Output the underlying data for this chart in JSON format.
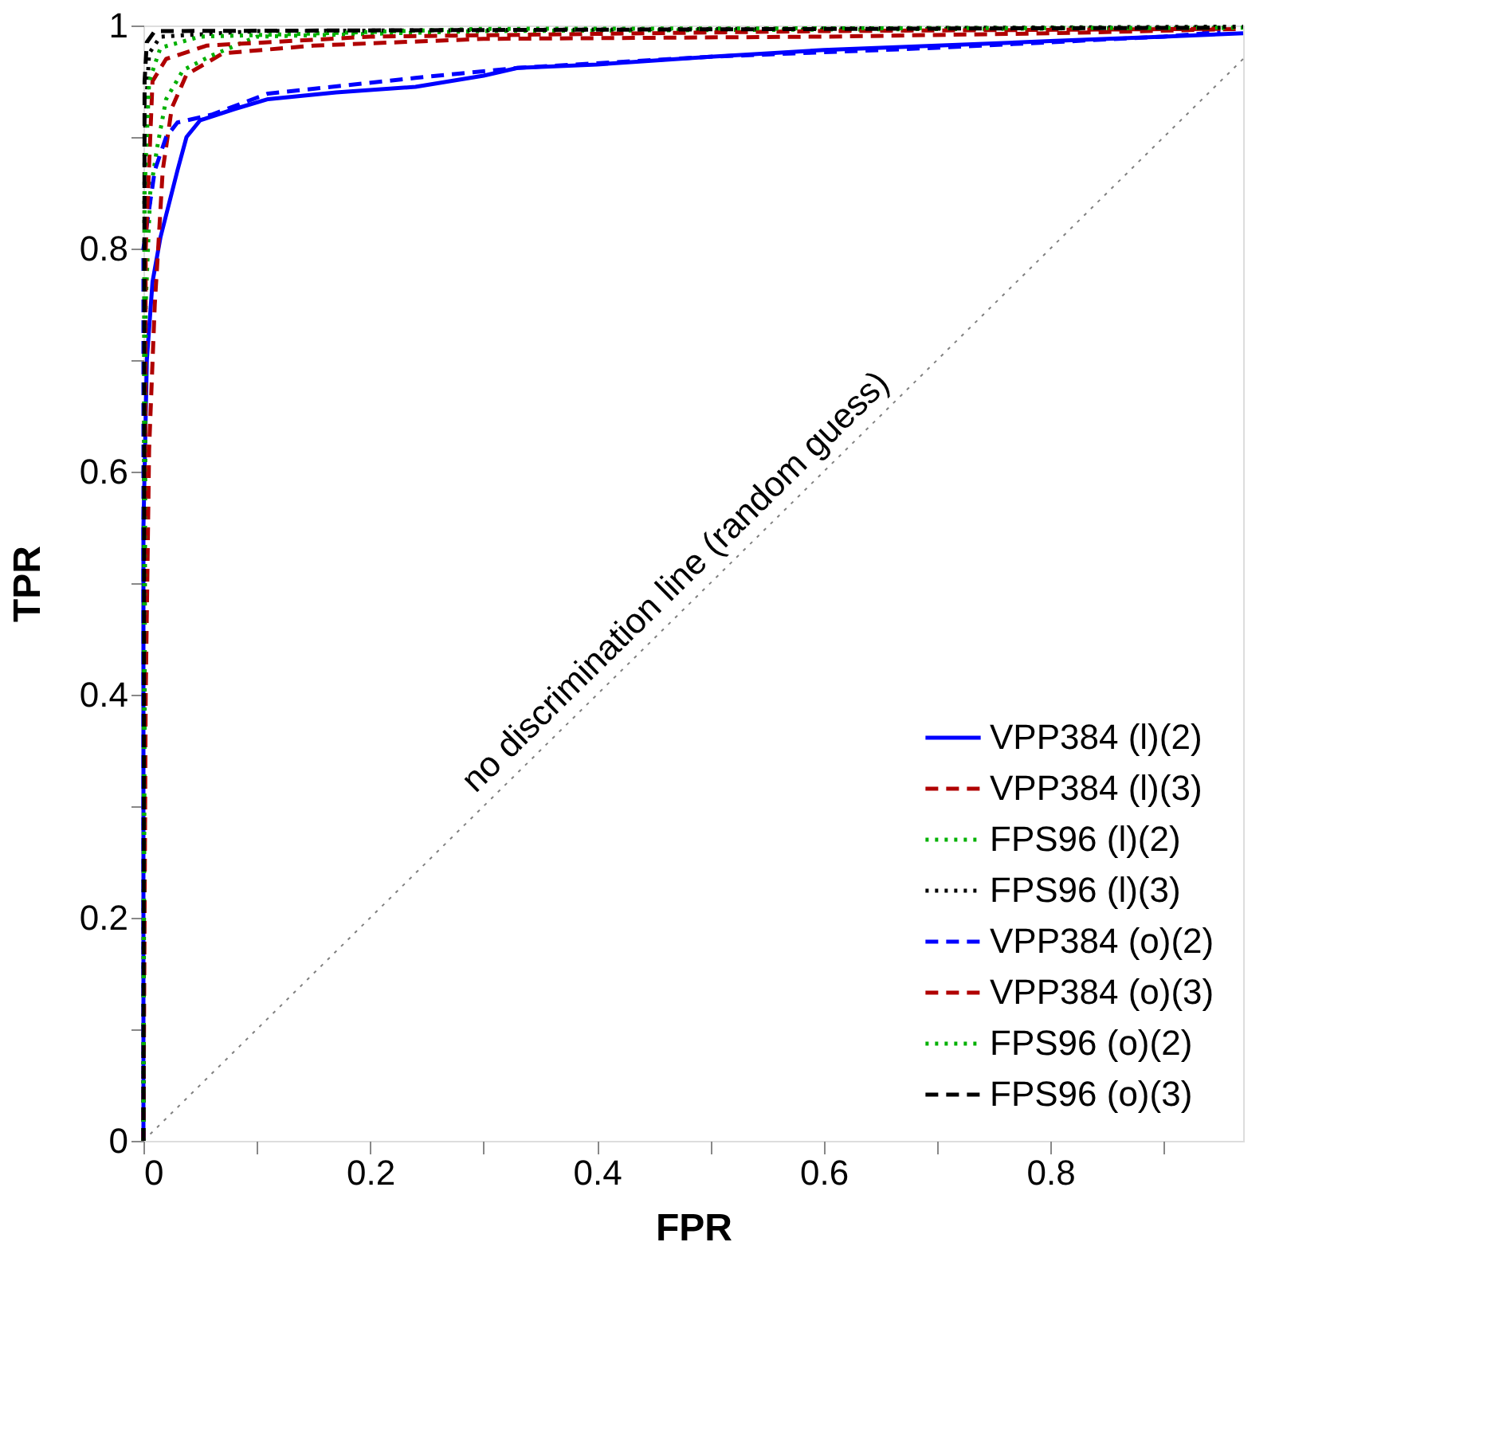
{
  "chart_data": {
    "type": "line",
    "xlabel": "FPR",
    "ylabel": "TPR",
    "xlim": [
      0,
      0.97
    ],
    "ylim": [
      0,
      1
    ],
    "xticks": [
      0,
      {
        "value": 0.1,
        "label": null
      },
      0.2,
      {
        "value": 0.3,
        "label": null
      },
      0.4,
      {
        "value": 0.5,
        "label": null
      },
      0.6,
      {
        "value": 0.7,
        "label": null
      },
      0.8,
      {
        "value": 0.9,
        "label": null
      }
    ],
    "yticks": [
      0,
      {
        "value": 0.1,
        "label": null
      },
      0.2,
      {
        "value": 0.3,
        "label": null
      },
      0.4,
      {
        "value": 0.5,
        "label": null
      },
      0.6,
      {
        "value": 0.7,
        "label": null
      },
      0.8,
      {
        "value": 0.9,
        "label": null
      },
      1
    ],
    "grid": false,
    "legend": "bottom right",
    "annotations": [
      "no discrimination line (random guess)"
    ],
    "series": [
      {
        "name": "VPP384 (l)(2)",
        "color": "#0000ff",
        "line_style": "solid",
        "x": [
          0,
          0,
          0.003,
          0.008,
          0.015,
          0.02,
          0.03,
          0.038,
          0.05,
          0.08,
          0.11,
          0.17,
          0.24,
          0.3,
          0.33,
          0.4,
          0.5,
          0.6,
          0.7,
          0.8,
          0.9,
          0.97
        ],
        "values": [
          0,
          0.55,
          0.7,
          0.77,
          0.81,
          0.83,
          0.87,
          0.9,
          0.915,
          0.925,
          0.934,
          0.94,
          0.945,
          0.955,
          0.962,
          0.965,
          0.972,
          0.978,
          0.982,
          0.986,
          0.99,
          0.993
        ]
      },
      {
        "name": "VPP384 (l)(3)",
        "color": "#b00000",
        "line_style": "dashed",
        "x": [
          0,
          0.002,
          0.005,
          0.01,
          0.013,
          0.017,
          0.025,
          0.038,
          0.07,
          0.15,
          0.3,
          0.6,
          0.8,
          0.97
        ],
        "values": [
          0,
          0.4,
          0.62,
          0.75,
          0.8,
          0.87,
          0.926,
          0.956,
          0.975,
          0.982,
          0.988,
          0.99,
          0.993,
          0.997
        ]
      },
      {
        "name": "FPS96 (l)(2)",
        "color": "#00b000",
        "line_style": "dotted",
        "x": [
          0,
          0.002,
          0.006,
          0.012,
          0.02,
          0.035,
          0.06,
          0.1,
          0.3,
          0.97
        ],
        "values": [
          0,
          0.75,
          0.85,
          0.89,
          0.934,
          0.96,
          0.973,
          0.99,
          0.995,
          0.998
        ]
      },
      {
        "name": "FPS96 (l)(3)",
        "color": "#000000",
        "line_style": "dotted",
        "x": [
          0,
          0.001,
          0.005,
          0.015,
          0.1,
          0.97
        ],
        "values": [
          0,
          0.9,
          0.975,
          0.99,
          0.995,
          0.999
        ]
      },
      {
        "name": "VPP384 (o)(2)",
        "color": "#0000ff",
        "line_style": "dashed",
        "x": [
          0,
          0,
          0.01,
          0.02,
          0.03,
          0.06,
          0.11,
          0.24,
          0.33,
          0.5,
          0.7,
          0.9,
          0.95
        ],
        "values": [
          0,
          0.8,
          0.87,
          0.9,
          0.913,
          0.92,
          0.939,
          0.953,
          0.962,
          0.972,
          0.98,
          0.99,
          0.994
        ]
      },
      {
        "name": "VPP384 (o)(3)",
        "color": "#b00000",
        "line_style": "dashed",
        "x": [
          0,
          0.002,
          0.008,
          0.02,
          0.056,
          0.2,
          0.6,
          0.95
        ],
        "values": [
          0,
          0.8,
          0.95,
          0.97,
          0.982,
          0.99,
          0.995,
          0.997
        ]
      },
      {
        "name": "FPS96 (o)(2)",
        "color": "#00b000",
        "line_style": "dotted",
        "x": [
          0,
          0.001,
          0.005,
          0.015,
          0.05,
          0.3,
          0.95
        ],
        "values": [
          0,
          0.85,
          0.95,
          0.98,
          0.99,
          0.997,
          0.998
        ]
      },
      {
        "name": "FPS96 (o)(3)",
        "color": "#000000",
        "line_style": "dashed",
        "x": [
          0,
          0.001,
          0.003,
          0.01,
          0.95
        ],
        "values": [
          0,
          0.95,
          0.985,
          0.995,
          0.998
        ]
      },
      {
        "color": "#808080",
        "line_style": "dotted",
        "x": [
          0,
          0.97
        ],
        "values": [
          0,
          0.97
        ]
      }
    ]
  }
}
